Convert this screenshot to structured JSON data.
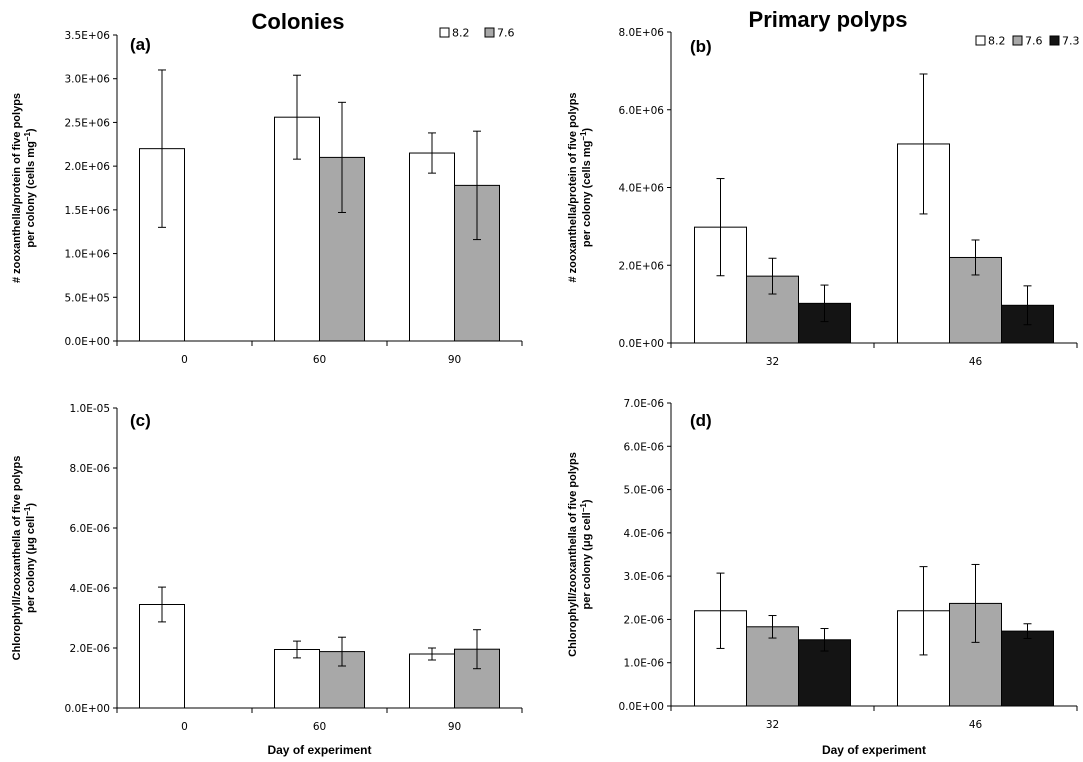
{
  "titles": {
    "left": "Colonies",
    "right": "Primary polyps"
  },
  "colors": {
    "8.2": "#ffffff",
    "7.6": "#a8a8a8",
    "7.3": "#141414"
  },
  "chart_data": [
    {
      "type": "bar",
      "panel": "(a)",
      "categories": [
        "0",
        "60",
        "90"
      ],
      "ylabel": "# zooxanthella/protein of five polyps",
      "ylabel2": "per colony (cells mg",
      "ylabel_sup": "−1",
      "ylabel_end": ")",
      "xlabel": "",
      "ylim": [
        0,
        3500000
      ],
      "yticks": [
        0,
        500000,
        1000000,
        1500000,
        2000000,
        2500000,
        3000000,
        3500000
      ],
      "ytick_labels": [
        "0.0E+00",
        "5.0E+05",
        "1.0E+06",
        "1.5E+06",
        "2.0E+06",
        "2.5E+06",
        "3.0E+06",
        "3.5E+06"
      ],
      "legend": [
        "8.2",
        "7.6"
      ],
      "series": [
        {
          "name": "8.2",
          "values": [
            2200000,
            2560000,
            2150000
          ],
          "errors": [
            900000,
            480000,
            230000
          ]
        },
        {
          "name": "7.6",
          "values": [
            null,
            2100000,
            1780000
          ],
          "errors": [
            null,
            630000,
            620000
          ]
        }
      ]
    },
    {
      "type": "bar",
      "panel": "(b)",
      "categories": [
        "32",
        "46"
      ],
      "ylabel": "# zooxanthella/protein of five polyps",
      "ylabel2": "per colony (cells mg",
      "ylabel_sup": "−1",
      "ylabel_end": ")",
      "xlabel": "",
      "ylim": [
        0,
        8000000
      ],
      "yticks": [
        0,
        2000000,
        4000000,
        6000000,
        8000000
      ],
      "ytick_labels": [
        "0.0E+00",
        "2.0E+06",
        "4.0E+06",
        "6.0E+06",
        "8.0E+06"
      ],
      "legend": [
        "8.2",
        "7.6",
        "7.3"
      ],
      "series": [
        {
          "name": "8.2",
          "values": [
            2980000,
            5120000
          ],
          "errors": [
            1250000,
            1800000
          ]
        },
        {
          "name": "7.6",
          "values": [
            1720000,
            2200000
          ],
          "errors": [
            460000,
            450000
          ]
        },
        {
          "name": "7.3",
          "values": [
            1020000,
            970000
          ],
          "errors": [
            470000,
            500000
          ]
        }
      ]
    },
    {
      "type": "bar",
      "panel": "(c)",
      "categories": [
        "0",
        "60",
        "90"
      ],
      "ylabel": "Chlorophyll/zooxanthella of five polyps",
      "ylabel2": "per colony (μg cell",
      "ylabel_sup": "−1",
      "ylabel_end": ")",
      "xlabel": "Day of experiment",
      "ylim": [
        0,
        1e-05
      ],
      "yticks": [
        0,
        2e-06,
        4e-06,
        6e-06,
        8e-06,
        1e-05
      ],
      "ytick_labels": [
        "0.0E+00",
        "2.0E-06",
        "4.0E-06",
        "6.0E-06",
        "8.0E-06",
        "1.0E-05"
      ],
      "legend": [],
      "series": [
        {
          "name": "8.2",
          "values": [
            3.45e-06,
            1.95e-06,
            1.8e-06
          ],
          "errors": [
            5.8e-07,
            2.8e-07,
            2e-07
          ]
        },
        {
          "name": "7.6",
          "values": [
            null,
            1.88e-06,
            1.96e-06
          ],
          "errors": [
            null,
            4.8e-07,
            6.5e-07
          ]
        }
      ]
    },
    {
      "type": "bar",
      "panel": "(d)",
      "categories": [
        "32",
        "46"
      ],
      "ylabel": "Chlorophyll/zooxanthella of five polyps",
      "ylabel2": "per colony (μg cell",
      "ylabel_sup": "−1",
      "ylabel_end": ")",
      "xlabel": "Day of experiment",
      "ylim": [
        0,
        7e-06
      ],
      "yticks": [
        0,
        1e-06,
        2e-06,
        3e-06,
        4e-06,
        5e-06,
        6e-06,
        7e-06
      ],
      "ytick_labels": [
        "0.0E+00",
        "1.0E-06",
        "2.0E-06",
        "3.0E-06",
        "4.0E-06",
        "5.0E-06",
        "6.0E-06",
        "7.0E-06"
      ],
      "legend": [],
      "series": [
        {
          "name": "8.2",
          "values": [
            2.2e-06,
            2.2e-06
          ],
          "errors": [
            8.7e-07,
            1.02e-06
          ]
        },
        {
          "name": "7.6",
          "values": [
            1.83e-06,
            2.37e-06
          ],
          "errors": [
            2.6e-07,
            9e-07
          ]
        },
        {
          "name": "7.3",
          "values": [
            1.53e-06,
            1.73e-06
          ],
          "errors": [
            2.6e-07,
            1.7e-07
          ]
        }
      ]
    }
  ]
}
